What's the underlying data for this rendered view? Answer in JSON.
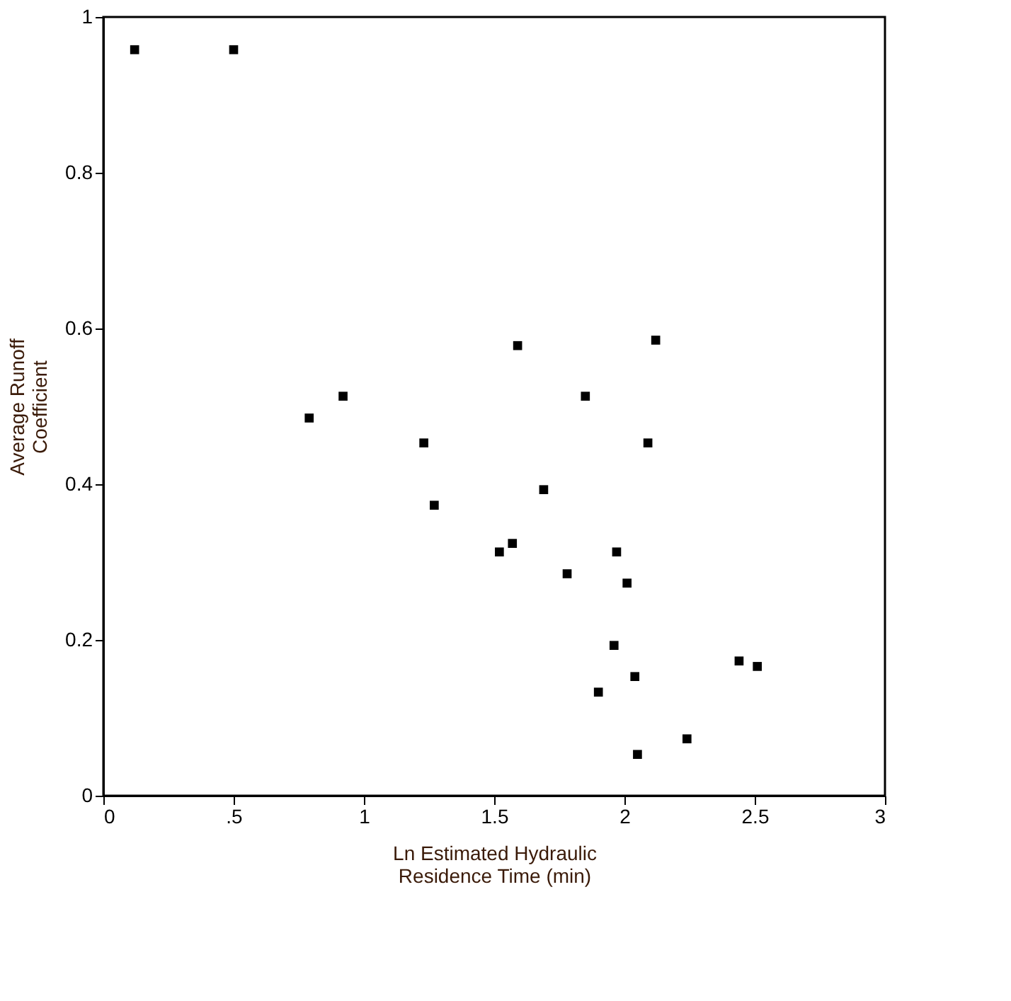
{
  "chart_data": {
    "type": "scatter",
    "xlabel": "Ln Estimated Hydraulic\nResidence Time (min)",
    "ylabel": "Average Runoff\nCoefficient",
    "x": [
      0.12,
      0.5,
      0.79,
      0.92,
      1.23,
      1.27,
      1.52,
      1.57,
      1.59,
      1.69,
      1.78,
      1.85,
      1.97,
      2.01,
      1.96,
      2.04,
      1.9,
      2.05,
      2.09,
      2.12,
      2.24,
      2.44,
      2.51
    ],
    "series": [
      {
        "color": "#000000",
        "values": [
          0.958,
          0.958,
          0.485,
          0.513,
          0.453,
          0.373,
          0.313,
          0.324,
          0.578,
          0.393,
          0.285,
          0.513,
          0.313,
          0.273,
          0.193,
          0.153,
          0.133,
          0.053,
          0.453,
          0.585,
          0.073,
          0.173,
          0.166
        ]
      }
    ],
    "marker": "square",
    "grid": false,
    "legend": false,
    "xlim": [
      0,
      3
    ],
    "xticks": [
      0,
      {
        "value": 0.5,
        "label": ".5"
      },
      1,
      1.5,
      2,
      2.5,
      3
    ],
    "ylim": [
      0,
      1
    ],
    "yticks": [
      0,
      0.2,
      0.4,
      0.6,
      0.8,
      1
    ]
  }
}
